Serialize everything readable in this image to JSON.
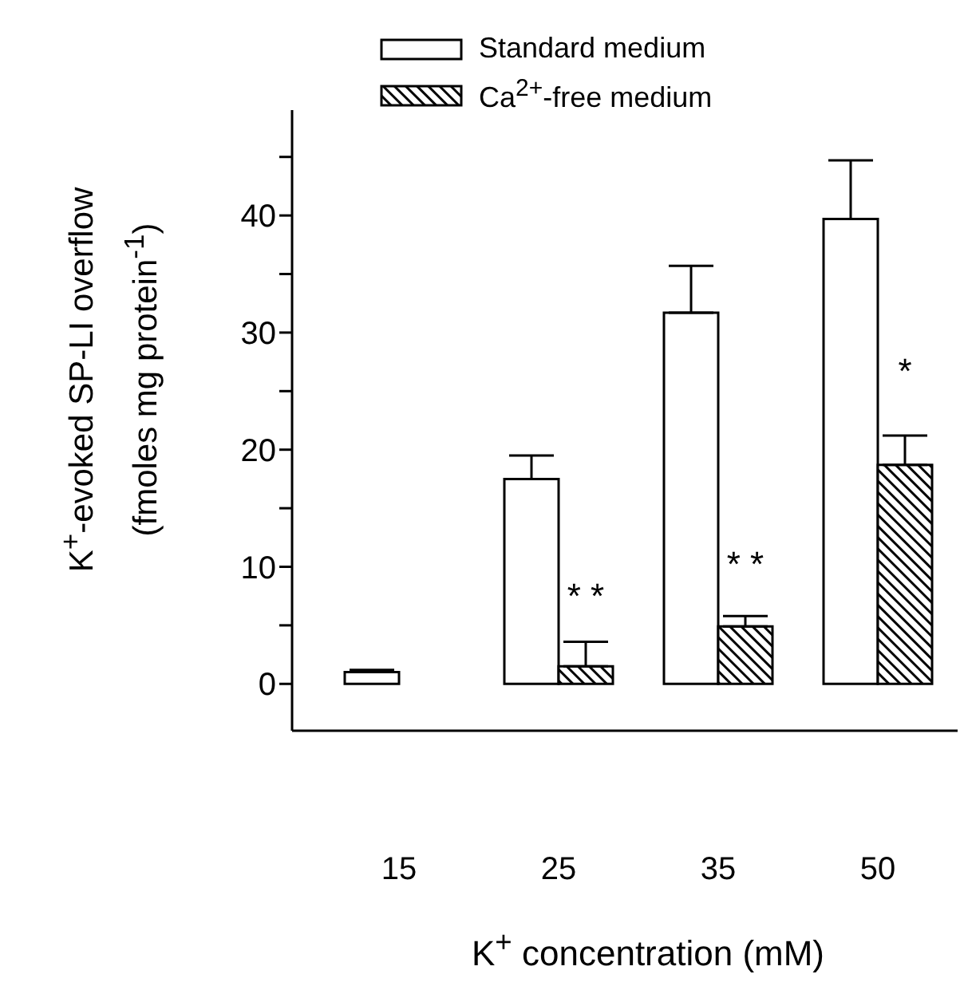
{
  "chart_data": {
    "type": "bar",
    "xlabel": "K$^{+}$ concentration (mM)",
    "ylabel": "K$^{+}$-evoked SP-LI overflow\n(fmoles mg protein$^{-1}$)",
    "categories": [
      "15",
      "25",
      "35",
      "50"
    ],
    "series": [
      {
        "name": "Standard medium",
        "color": "#ffffff",
        "values": [
          1,
          17.5,
          31.7,
          39.7
        ],
        "errors": [
          [
            1,
            1.2
          ],
          [
            17.5,
            19.5
          ],
          [
            31.7,
            35.7
          ],
          [
            39.7,
            44.7
          ]
        ]
      },
      {
        "name": "Ca$^{2+}$-free medium",
        "color": "#000000",
        "values": [
          null,
          1.5,
          4.9,
          18.7
        ],
        "errors": [
          null,
          [
            1.5,
            3.6
          ],
          [
            4.9,
            5.8
          ],
          [
            18.7,
            21.2
          ]
        ]
      }
    ],
    "ylim": [
      -4,
      49
    ],
    "yticks": [
      0,
      {
        "value": 5,
        "label": null
      },
      10,
      {
        "value": 15,
        "label": null
      },
      20,
      {
        "value": 25,
        "label": null
      },
      30,
      {
        "value": 35,
        "label": null
      },
      40,
      {
        "value": 45,
        "label": null
      }
    ],
    "annotations": [
      {
        "text": "* *",
        "x": "25",
        "y": 6.5
      },
      {
        "text": "* *",
        "x": "35",
        "y": 9.2
      },
      {
        "text": "*",
        "x": "50",
        "y": 25.7
      }
    ],
    "legend": "top",
    "grid": false
  }
}
